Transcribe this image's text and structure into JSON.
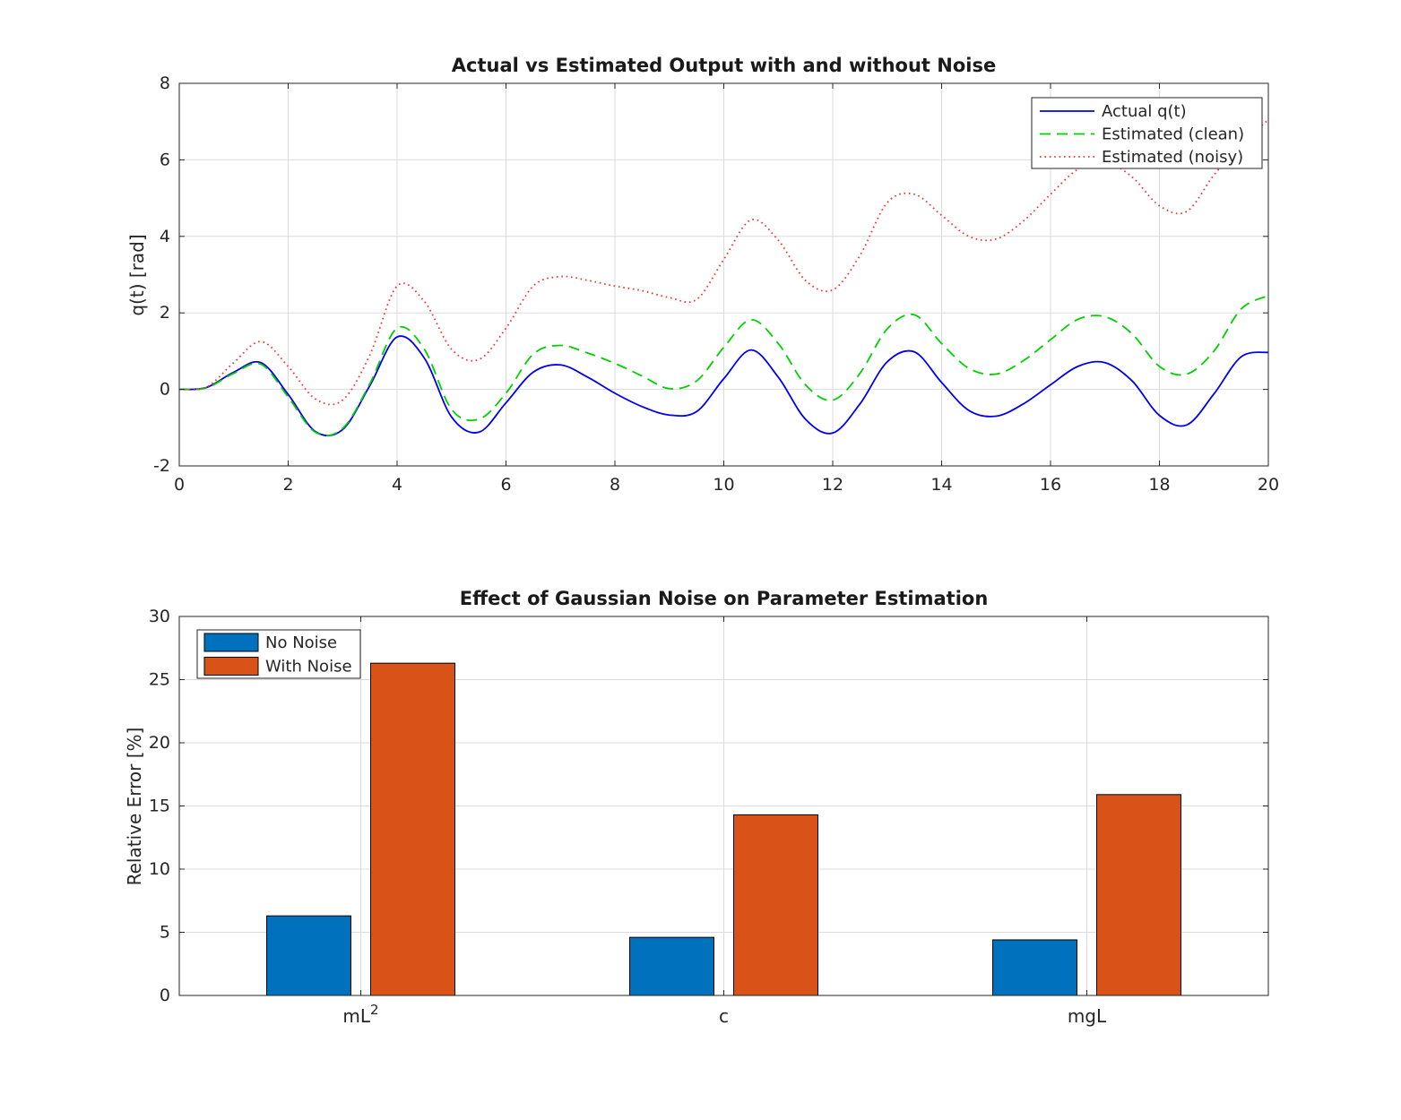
{
  "figure": {
    "background": "#ffffff",
    "axis_color": "#262626",
    "grid_color": "#dbdbdb"
  },
  "chart_data": [
    {
      "name": "output-comparison",
      "type": "line",
      "title": "Actual vs Estimated Output with and without Noise",
      "xlabel": "",
      "ylabel": "q(t) [rad]",
      "xlim": [
        0,
        20
      ],
      "ylim": [
        -2,
        8
      ],
      "xticks": [
        0,
        2,
        4,
        6,
        8,
        10,
        12,
        14,
        16,
        18,
        20
      ],
      "yticks": [
        -2,
        0,
        2,
        4,
        6,
        8
      ],
      "grid": true,
      "legend_position": "top-right",
      "x": [
        0,
        0.5,
        1,
        1.5,
        2,
        2.5,
        3,
        3.5,
        4,
        4.5,
        5,
        5.5,
        6,
        6.5,
        7,
        7.5,
        8,
        8.5,
        9,
        9.5,
        10,
        10.5,
        11,
        11.5,
        12,
        12.5,
        13,
        13.5,
        14,
        14.5,
        15,
        15.5,
        16,
        16.5,
        17,
        17.5,
        18,
        18.5,
        19,
        19.5,
        20
      ],
      "series": [
        {
          "name": "Actual q(t)",
          "color": "#0000ee",
          "line_style": "solid",
          "values": [
            0,
            0.05,
            0.45,
            0.7,
            -0.13,
            -1.1,
            -1.05,
            0.1,
            1.37,
            0.82,
            -0.72,
            -1.12,
            -0.35,
            0.45,
            0.64,
            0.32,
            -0.1,
            -0.45,
            -0.67,
            -0.58,
            0.28,
            1.03,
            0.32,
            -0.78,
            -1.14,
            -0.38,
            0.72,
            0.98,
            0.18,
            -0.55,
            -0.7,
            -0.38,
            0.12,
            0.6,
            0.7,
            0.22,
            -0.68,
            -0.93,
            -0.12,
            0.85,
            0.97
          ]
        },
        {
          "name": "Estimated (clean)",
          "color": "#00d000",
          "line_style": "dashed",
          "values": [
            0,
            0.04,
            0.42,
            0.66,
            -0.2,
            -1.12,
            -1.02,
            0.15,
            1.6,
            1.05,
            -0.52,
            -0.78,
            -0.1,
            0.92,
            1.15,
            0.95,
            0.68,
            0.35,
            0.02,
            0.22,
            1.1,
            1.82,
            1.2,
            0.12,
            -0.28,
            0.42,
            1.58,
            1.95,
            1.2,
            0.55,
            0.4,
            0.75,
            1.3,
            1.83,
            1.9,
            1.45,
            0.6,
            0.4,
            1.0,
            2.1,
            2.45
          ]
        },
        {
          "name": "Estimated (noisy)",
          "color": "#ee3333",
          "line_style": "dotted",
          "values": [
            0,
            0.06,
            0.7,
            1.25,
            0.6,
            -0.25,
            -0.28,
            0.9,
            2.7,
            2.3,
            1.05,
            0.78,
            1.6,
            2.7,
            2.95,
            2.85,
            2.7,
            2.58,
            2.4,
            2.35,
            3.4,
            4.43,
            3.9,
            2.85,
            2.6,
            3.5,
            4.88,
            5.1,
            4.55,
            4.0,
            3.93,
            4.4,
            5.1,
            5.75,
            5.95,
            5.55,
            4.8,
            4.65,
            5.6,
            6.4,
            7.05
          ]
        }
      ]
    },
    {
      "name": "noise-error-bars",
      "type": "bar",
      "title": "Effect of Gaussian Noise on Parameter Estimation",
      "xlabel": "",
      "ylabel": "Relative Error [%]",
      "categories": [
        "mL^2",
        "c",
        "mgL"
      ],
      "ylim": [
        0,
        30
      ],
      "yticks": [
        0,
        5,
        10,
        15,
        20,
        25,
        30
      ],
      "grid": true,
      "legend_position": "top-left",
      "bar_edge_color": "#000000",
      "series": [
        {
          "name": "No Noise",
          "color": "#0072BD",
          "values": [
            6.3,
            4.6,
            4.4
          ]
        },
        {
          "name": "With Noise",
          "color": "#D95319",
          "values": [
            26.3,
            14.3,
            15.9
          ]
        }
      ]
    }
  ]
}
